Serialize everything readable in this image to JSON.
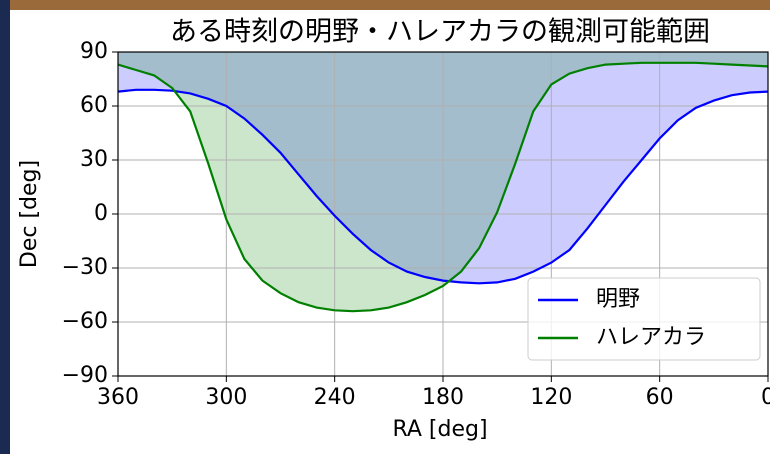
{
  "chart_data": {
    "type": "line",
    "title": "ある時刻の明野・ハレアカラの観測可能範囲",
    "x_label": "RA [deg]",
    "y_label": "Dec [deg]",
    "x": [
      360,
      350,
      340,
      330,
      320,
      310,
      300,
      290,
      280,
      270,
      260,
      250,
      240,
      230,
      220,
      210,
      200,
      190,
      180,
      170,
      160,
      150,
      140,
      130,
      120,
      110,
      100,
      90,
      80,
      70,
      60,
      50,
      40,
      30,
      20,
      10,
      0
    ],
    "series": [
      {
        "name": "明野",
        "color": "#0000ff",
        "values": [
          68,
          69,
          69,
          68.5,
          67,
          64,
          60,
          53,
          44,
          34,
          22,
          10,
          -1,
          -11,
          -20,
          -27,
          -32,
          -35,
          -37,
          -38,
          -38.5,
          -38,
          -36,
          -32,
          -27,
          -20,
          -8,
          5,
          18,
          30,
          42,
          52,
          59,
          63,
          66,
          67.5,
          68
        ]
      },
      {
        "name": "ハレアカラ",
        "color": "#008000",
        "values": [
          83,
          80,
          77,
          70,
          57,
          28,
          -3,
          -25,
          -37,
          -44,
          -49,
          -52,
          -53.5,
          -54,
          -53.5,
          -52,
          -49,
          -45,
          -40,
          -32,
          -19,
          1,
          28,
          57,
          72,
          78,
          81,
          83,
          83.5,
          84,
          84,
          84,
          84,
          83.5,
          83,
          82.5,
          82
        ]
      }
    ],
    "xlim": [
      360,
      0
    ],
    "ylim": [
      -90,
      90
    ],
    "xticks": [
      360,
      300,
      240,
      180,
      120,
      60,
      0
    ],
    "yticks": [
      {
        "value": -90,
        "label": "−90"
      },
      {
        "value": -60,
        "label": "−60"
      },
      {
        "value": -30,
        "label": "−30"
      },
      0,
      30,
      60,
      90
    ],
    "grid": true,
    "fill_to": 90,
    "fill_opacity": 0.2,
    "legend": "lower right"
  }
}
